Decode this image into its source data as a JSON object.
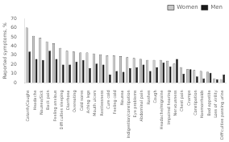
{
  "chart_data": {
    "type": "bar",
    "categories": [
      "Catarrh/Coughs",
      "Headache",
      "Nausea/Sick",
      "Back pain",
      "Feeling anxious",
      "Difficulties sleeping",
      "Diarrhoea",
      "Overeating",
      "Cold sores",
      "Aching legs",
      "Mouth ulcers",
      "Restlessness",
      "Cure cold",
      "Feeling cold",
      "Nausea",
      "Indigestion/constipation",
      "Eye problems",
      "Abdominal pain",
      "Rashes",
      "Cough",
      "Headache/migraine",
      "Impaired hearing",
      "Nervousness",
      "Chest pain",
      "Cramps",
      "Constipation",
      "Haemorrhoids",
      "Bad appetite",
      "Loss of virility",
      "Difficulties passing urine"
    ],
    "series": [
      {
        "name": "Women",
        "color": "#c8c8c8",
        "values": [
          60,
          51,
          49,
          45,
          43,
          38,
          35,
          34,
          33,
          33,
          32,
          31,
          30,
          30,
          29,
          28,
          27,
          26,
          25,
          25,
          25,
          24,
          21,
          17,
          15,
          14,
          13,
          12,
          5,
          4
        ]
      },
      {
        "name": "Men",
        "color": "#1a1a1a",
        "values": [
          34,
          26,
          25,
          35,
          26,
          20,
          20,
          23,
          25,
          16,
          21,
          20,
          9,
          13,
          12,
          16,
          17,
          20,
          13,
          17,
          22,
          18,
          26,
          10,
          15,
          7,
          5,
          11,
          4,
          9
        ]
      }
    ],
    "ylabel": "Reported symptoms, %",
    "ylim": [
      0,
      70
    ],
    "yticks": [
      0,
      10,
      20,
      30,
      40,
      50,
      60,
      70
    ],
    "grid": false,
    "legend": "upper right"
  }
}
